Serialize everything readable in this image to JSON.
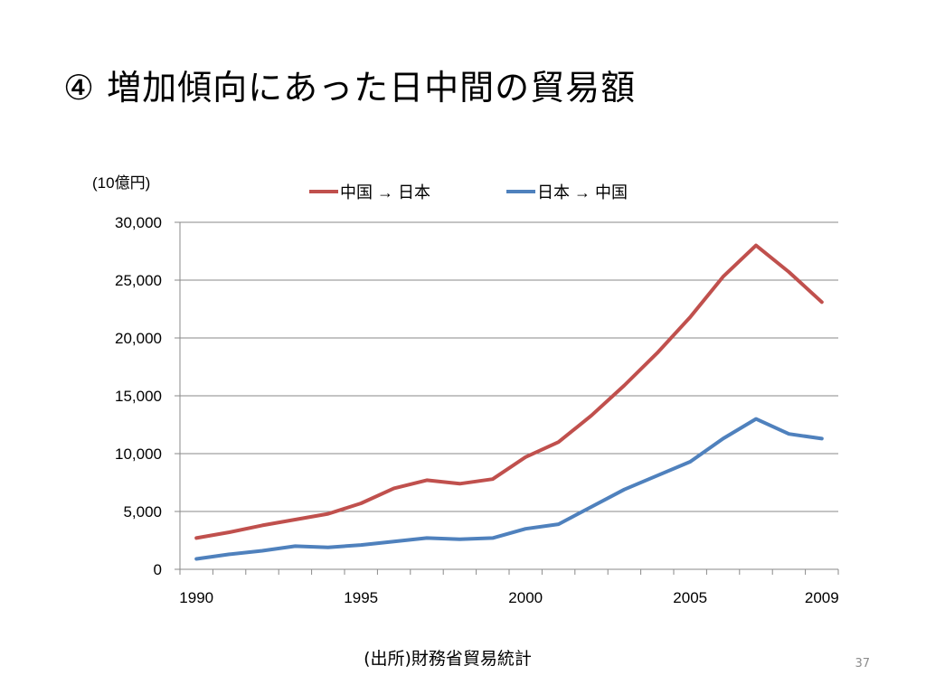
{
  "slide": {
    "title": "④ 増加傾向にあった日中間の貿易額",
    "source_note": "(出所)財務省貿易統計",
    "page_number": "37"
  },
  "chart_data": {
    "type": "line",
    "title": "",
    "xlabel": "",
    "ylabel": "(10億円)",
    "x": [
      1990,
      1991,
      1992,
      1993,
      1994,
      1995,
      1996,
      1997,
      1998,
      1999,
      2000,
      2001,
      2002,
      2003,
      2004,
      2005,
      2006,
      2007,
      2008,
      2009
    ],
    "x_tick_labels": [
      "1990",
      "1995",
      "2000",
      "2005",
      "2009"
    ],
    "x_tick_values": [
      1990,
      1995,
      2000,
      2005,
      2009
    ],
    "ylim": [
      0,
      30000
    ],
    "y_ticks": [
      0,
      5000,
      10000,
      15000,
      20000,
      25000,
      30000
    ],
    "y_tick_labels": [
      "0",
      "5,000",
      "10,000",
      "15,000",
      "20,000",
      "25,000",
      "30,000"
    ],
    "grid": true,
    "legend_position": "top",
    "series": [
      {
        "name": "中国 → 日本",
        "color": "#C0504D",
        "values": [
          2700,
          3200,
          3800,
          4300,
          4800,
          5700,
          7000,
          7700,
          7400,
          7800,
          9700,
          11000,
          13300,
          15900,
          18700,
          21800,
          25300,
          28000,
          25700,
          23100
        ]
      },
      {
        "name": "日本 → 中国",
        "color": "#4F81BD",
        "values": [
          900,
          1300,
          1600,
          2000,
          1900,
          2100,
          2400,
          2700,
          2600,
          2700,
          3500,
          3900,
          5400,
          6900,
          8100,
          9300,
          11300,
          13000,
          11700,
          11300
        ]
      }
    ]
  }
}
